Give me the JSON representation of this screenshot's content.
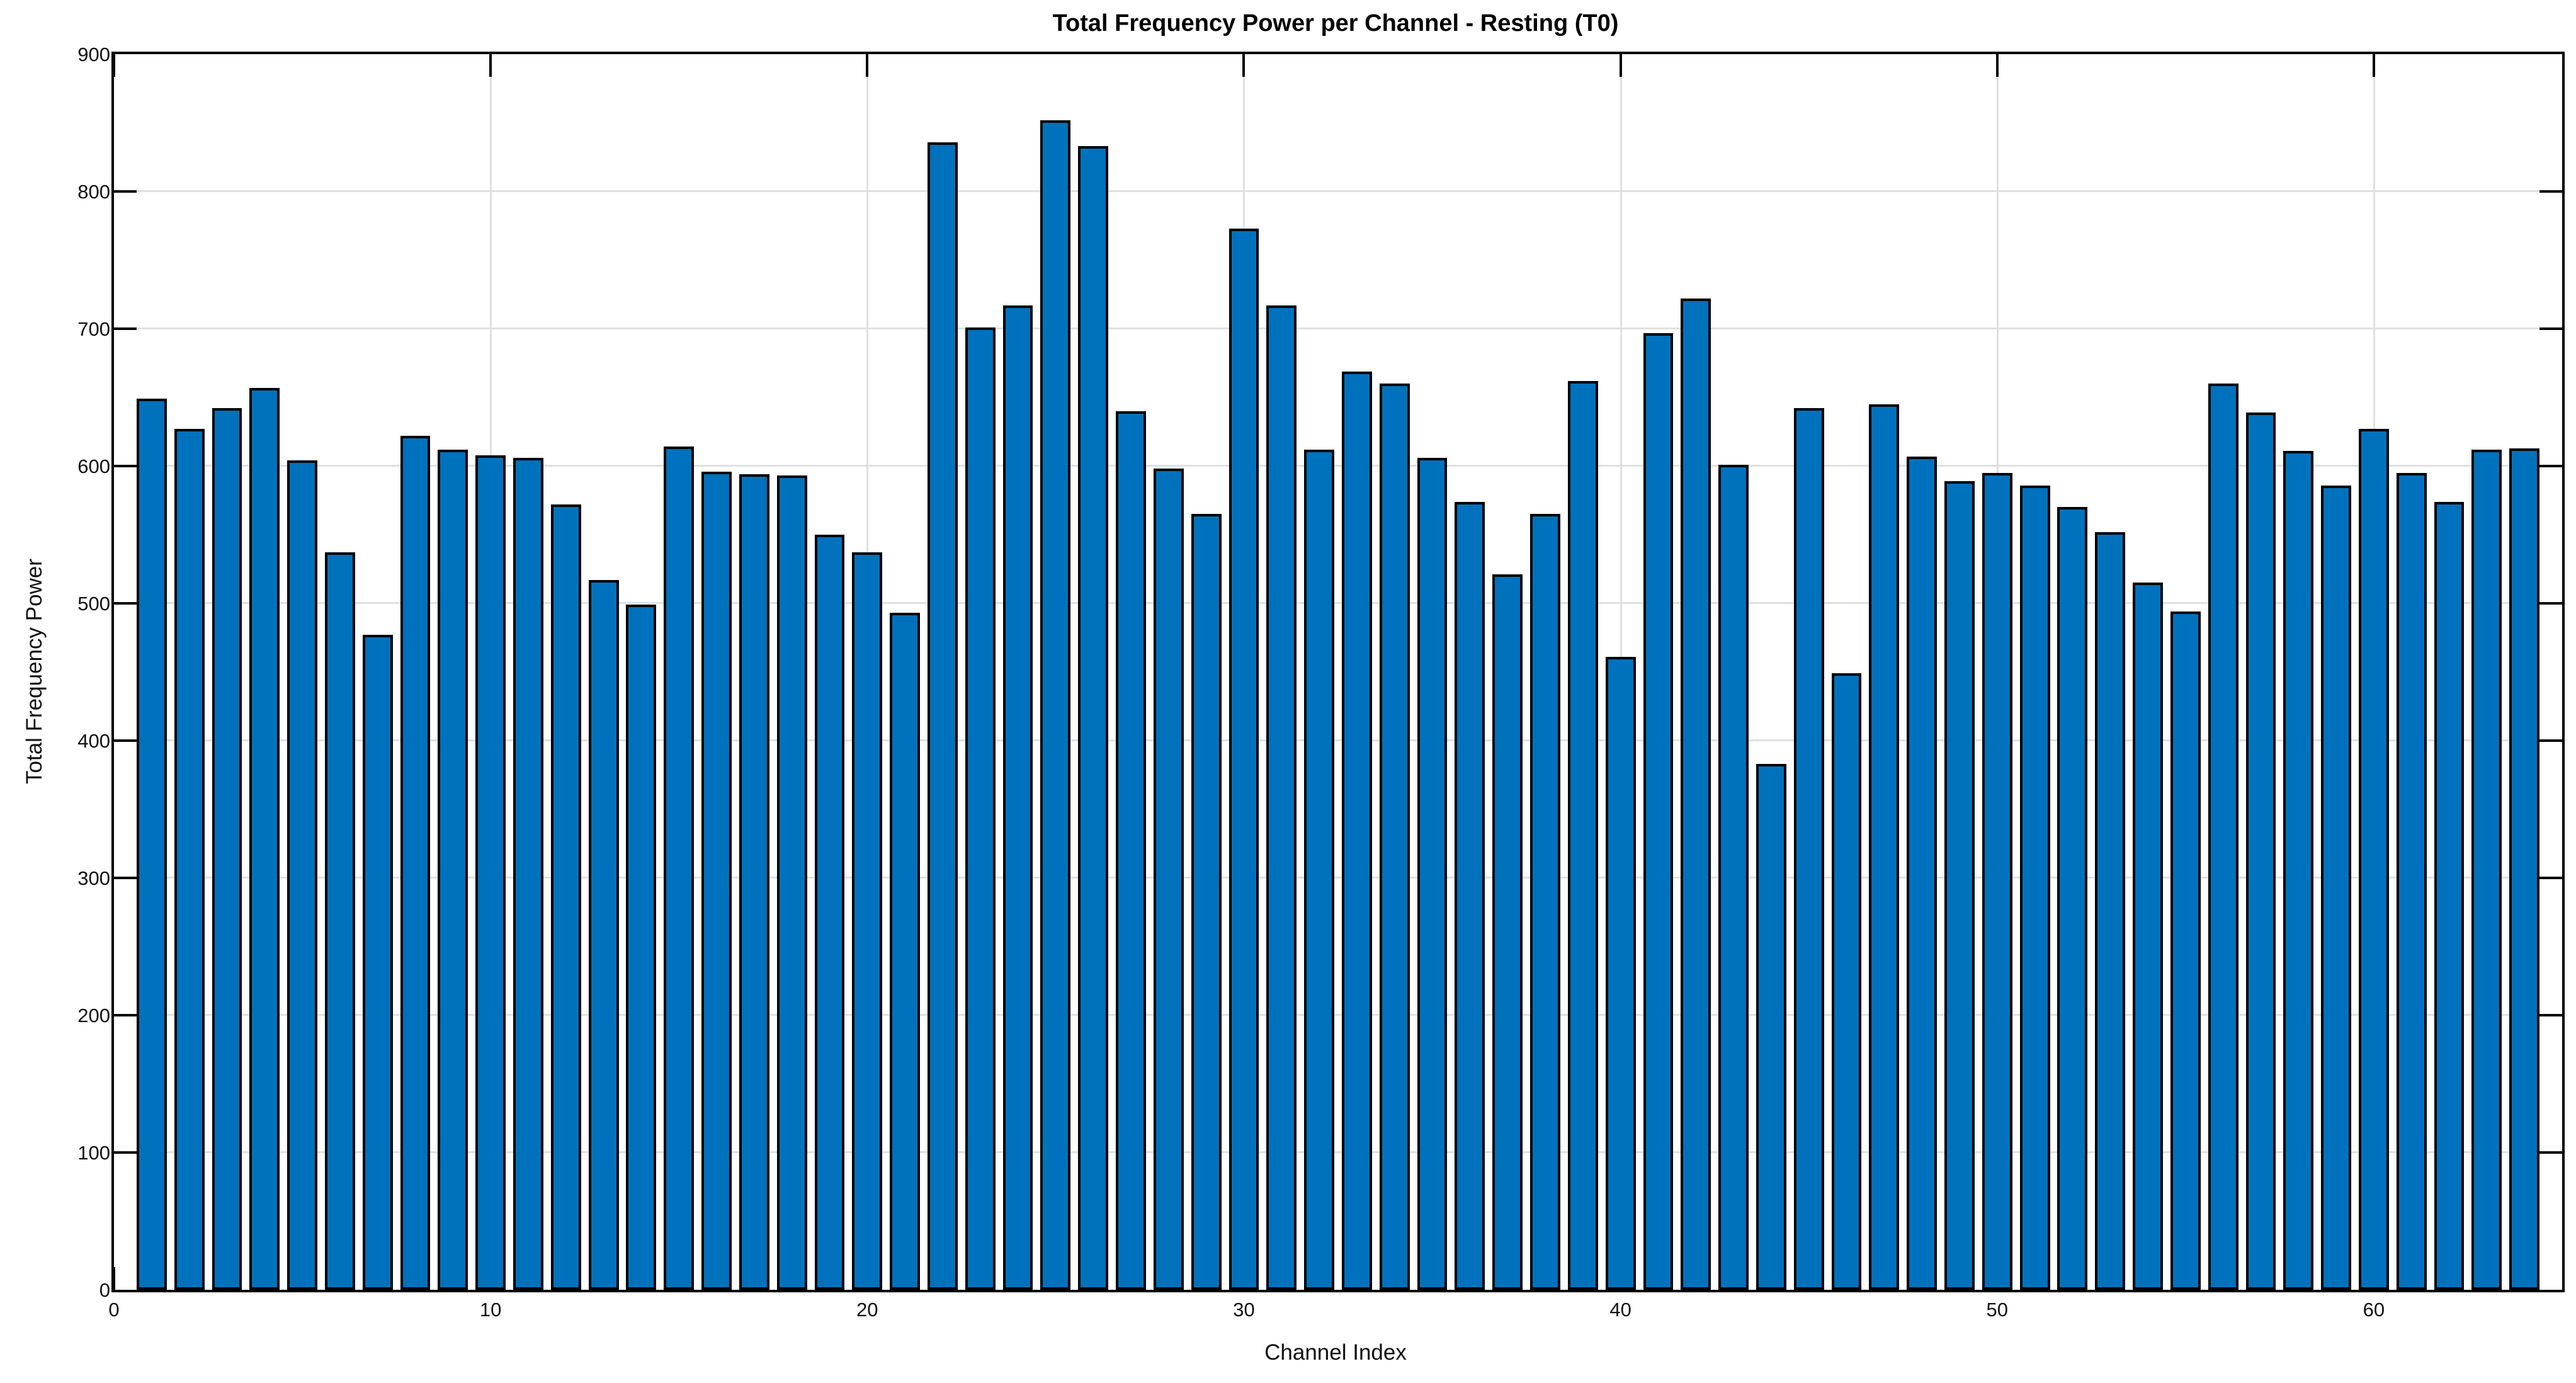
{
  "chart_data": {
    "type": "bar",
    "title": "Total Frequency Power per Channel - Resting (T0)",
    "xlabel": "Channel Index",
    "ylabel": "Total Frequency Power",
    "x": [
      1,
      2,
      3,
      4,
      5,
      6,
      7,
      8,
      9,
      10,
      11,
      12,
      13,
      14,
      15,
      16,
      17,
      18,
      19,
      20,
      21,
      22,
      23,
      24,
      25,
      26,
      27,
      28,
      29,
      30,
      31,
      32,
      33,
      34,
      35,
      36,
      37,
      38,
      39,
      40,
      41,
      42,
      43,
      44,
      45,
      46,
      47,
      48,
      49,
      50,
      51,
      52,
      53,
      54,
      55,
      56,
      57,
      58,
      59,
      60,
      61,
      62,
      63,
      64
    ],
    "values": [
      649,
      627,
      642,
      657,
      604,
      537,
      477,
      622,
      612,
      608,
      606,
      572,
      517,
      499,
      614,
      596,
      594,
      593,
      550,
      537,
      493,
      836,
      701,
      717,
      852,
      833,
      640,
      598,
      565,
      773,
      717,
      612,
      669,
      660,
      606,
      574,
      521,
      565,
      662,
      461,
      697,
      722,
      601,
      383,
      642,
      449,
      645,
      607,
      589,
      595,
      586,
      570,
      552,
      515,
      494,
      660,
      639,
      611,
      586,
      627,
      595,
      574,
      612,
      613
    ],
    "xlim": [
      0,
      65
    ],
    "ylim": [
      0,
      900
    ],
    "x_ticks": [
      0,
      10,
      20,
      30,
      40,
      50,
      60
    ],
    "y_ticks": [
      0,
      100,
      200,
      300,
      400,
      500,
      600,
      700,
      800,
      900
    ],
    "grid": true,
    "legend": null,
    "bar_width": 0.8,
    "bar_color": "#0072BD",
    "bar_edge_color": "#000000",
    "grid_color": "#E0E0E0",
    "axis_color": "#000000",
    "background_color": "#FFFFFF"
  }
}
